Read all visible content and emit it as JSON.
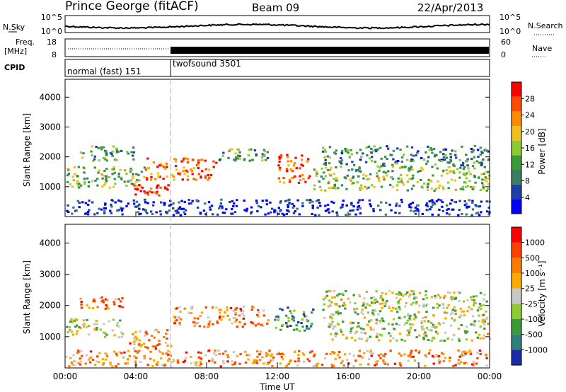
{
  "header": {
    "site": "Prince George (fitACF)",
    "beam": "Beam 09",
    "date": "22/Apr/2013"
  },
  "summary_panels": {
    "nsky_label": "N.Sky",
    "nsky_ticks": [
      "10^5",
      "10^0"
    ],
    "nsearch_label": "N.Search",
    "freq_label_top": "Freq.",
    "freq_label_bottom": "[MHz]",
    "freq_ticks": [
      "18",
      "8"
    ],
    "nave_label": "Nave",
    "nave_ticks": [
      "60",
      "0"
    ],
    "cpid_label": "CPID",
    "cpid_1": "normal (fast) 151",
    "cpid_2": "twofsound 3501"
  },
  "chart_data": [
    {
      "type": "heatmap",
      "name": "power-panel",
      "ylabel": "Slant Range [km]",
      "ylim": [
        0,
        4600
      ],
      "yticks": [
        "4000",
        "3000",
        "2000",
        "1000"
      ],
      "colorbar_label": "Power [dB]",
      "colorbar_ticks": [
        "28",
        "24",
        "20",
        "16",
        "12",
        "8",
        "4"
      ],
      "colors": [
        "#0000ff",
        "#1f3fa8",
        "#3a7d63",
        "#3a9a3a",
        "#8ccc33",
        "#f0c020",
        "#ff8c00",
        "#ff4a00",
        "#ff0000"
      ],
      "blobs": [
        {
          "t": [
            0.0,
            4.6
          ],
          "r": [
            1000,
            1700
          ],
          "level": 0.45
        },
        {
          "t": [
            3.8,
            5.8
          ],
          "r": [
            650,
            1100
          ],
          "level": 0.95
        },
        {
          "t": [
            4.5,
            8.5
          ],
          "r": [
            1250,
            2000
          ],
          "level": 0.8
        },
        {
          "t": [
            0.8,
            4.0
          ],
          "r": [
            1900,
            2400
          ],
          "level": 0.35
        },
        {
          "t": [
            8.5,
            11.5
          ],
          "r": [
            1900,
            2300
          ],
          "level": 0.4
        },
        {
          "t": [
            12.0,
            13.8
          ],
          "r": [
            1150,
            2100
          ],
          "level": 0.85
        },
        {
          "t": [
            14.5,
            24.0
          ],
          "r": [
            1700,
            2400
          ],
          "level": 0.3
        },
        {
          "t": [
            14.0,
            24.0
          ],
          "r": [
            900,
            1700
          ],
          "level": 0.45
        },
        {
          "t": [
            0.0,
            24.0
          ],
          "r": [
            80,
            600
          ],
          "level": 0.1
        }
      ],
      "xticks": [
        "00:00",
        "04:00",
        "08:00",
        "12:00",
        "16:00",
        "20:00",
        "00:00"
      ],
      "xlabel": "Time UT"
    },
    {
      "type": "heatmap",
      "name": "velocity-panel",
      "ylabel": "Slant Range [km]",
      "ylim": [
        0,
        4600
      ],
      "yticks": [
        "4000",
        "3000",
        "2000",
        "1000"
      ],
      "colorbar_label": "Velocity [m s⁻¹]",
      "colorbar_ticks": [
        "1000",
        "500",
        "100",
        "25",
        "-25",
        "-100",
        "-500",
        "-1000"
      ],
      "colors": [
        "#1a2aa8",
        "#2e8080",
        "#3a9a3a",
        "#8ccc33",
        "#c8c8c8",
        "#ffaa00",
        "#ff7a00",
        "#ff4000",
        "#ff0000"
      ],
      "blobs": [
        {
          "t": [
            0.0,
            3.2
          ],
          "r": [
            1000,
            1600
          ],
          "level": 0.45
        },
        {
          "t": [
            3.6,
            6.0
          ],
          "r": [
            650,
            1300
          ],
          "level": 0.7
        },
        {
          "t": [
            0.8,
            3.2
          ],
          "r": [
            1900,
            2300
          ],
          "level": 0.75
        },
        {
          "t": [
            6.0,
            11.5
          ],
          "r": [
            1350,
            2000
          ],
          "level": 0.7
        },
        {
          "t": [
            11.8,
            14.0
          ],
          "r": [
            1200,
            2000
          ],
          "level": 0.25
        },
        {
          "t": [
            14.5,
            24.0
          ],
          "r": [
            900,
            2500
          ],
          "level": 0.45
        },
        {
          "t": [
            0.0,
            24.0
          ],
          "r": [
            80,
            600
          ],
          "level": 0.7
        }
      ],
      "xticks": [
        "00:00",
        "04:00",
        "08:00",
        "12:00",
        "16:00",
        "20:00",
        "00:00"
      ],
      "xlabel": "Time UT"
    }
  ]
}
